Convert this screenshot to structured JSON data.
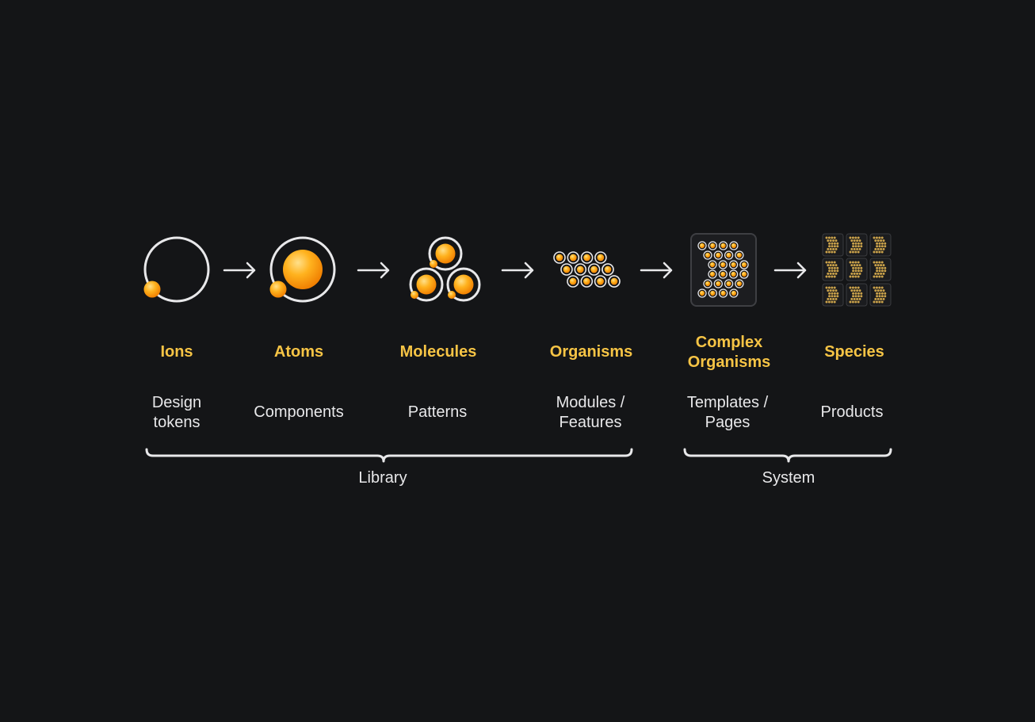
{
  "colors": {
    "background": "#141517",
    "stroke": "#e8e8ea",
    "accent": "#f6c445",
    "text": "#e8e8ea",
    "orb_light": "#ffe08a",
    "orb_mid": "#ffb21e",
    "orb_dark": "#ef7d00"
  },
  "stages": [
    {
      "id": "ions",
      "name_lines": [
        "Ions"
      ],
      "role_lines": [
        "Design",
        "tokens"
      ],
      "icon": "ion-icon"
    },
    {
      "id": "atoms",
      "name_lines": [
        "Atoms"
      ],
      "role_lines": [
        "Components"
      ],
      "icon": "atom-icon"
    },
    {
      "id": "molecules",
      "name_lines": [
        "Molecules"
      ],
      "role_lines": [
        "Patterns"
      ],
      "icon": "molecule-icon"
    },
    {
      "id": "organisms",
      "name_lines": [
        "Organisms"
      ],
      "role_lines": [
        "Modules /",
        "Features"
      ],
      "icon": "organism-icon"
    },
    {
      "id": "complex-organisms",
      "name_lines": [
        "Complex",
        "Organisms"
      ],
      "role_lines": [
        "Templates /",
        "Pages"
      ],
      "icon": "complex-organism-icon"
    },
    {
      "id": "species",
      "name_lines": [
        "Species"
      ],
      "role_lines": [
        "Products"
      ],
      "icon": "species-icon"
    }
  ],
  "arrows": [
    "arrow-right-icon",
    "arrow-right-icon",
    "arrow-right-icon",
    "arrow-right-icon",
    "arrow-right-icon"
  ],
  "groups": [
    {
      "id": "library",
      "label": "Library"
    },
    {
      "id": "system",
      "label": "System"
    }
  ]
}
